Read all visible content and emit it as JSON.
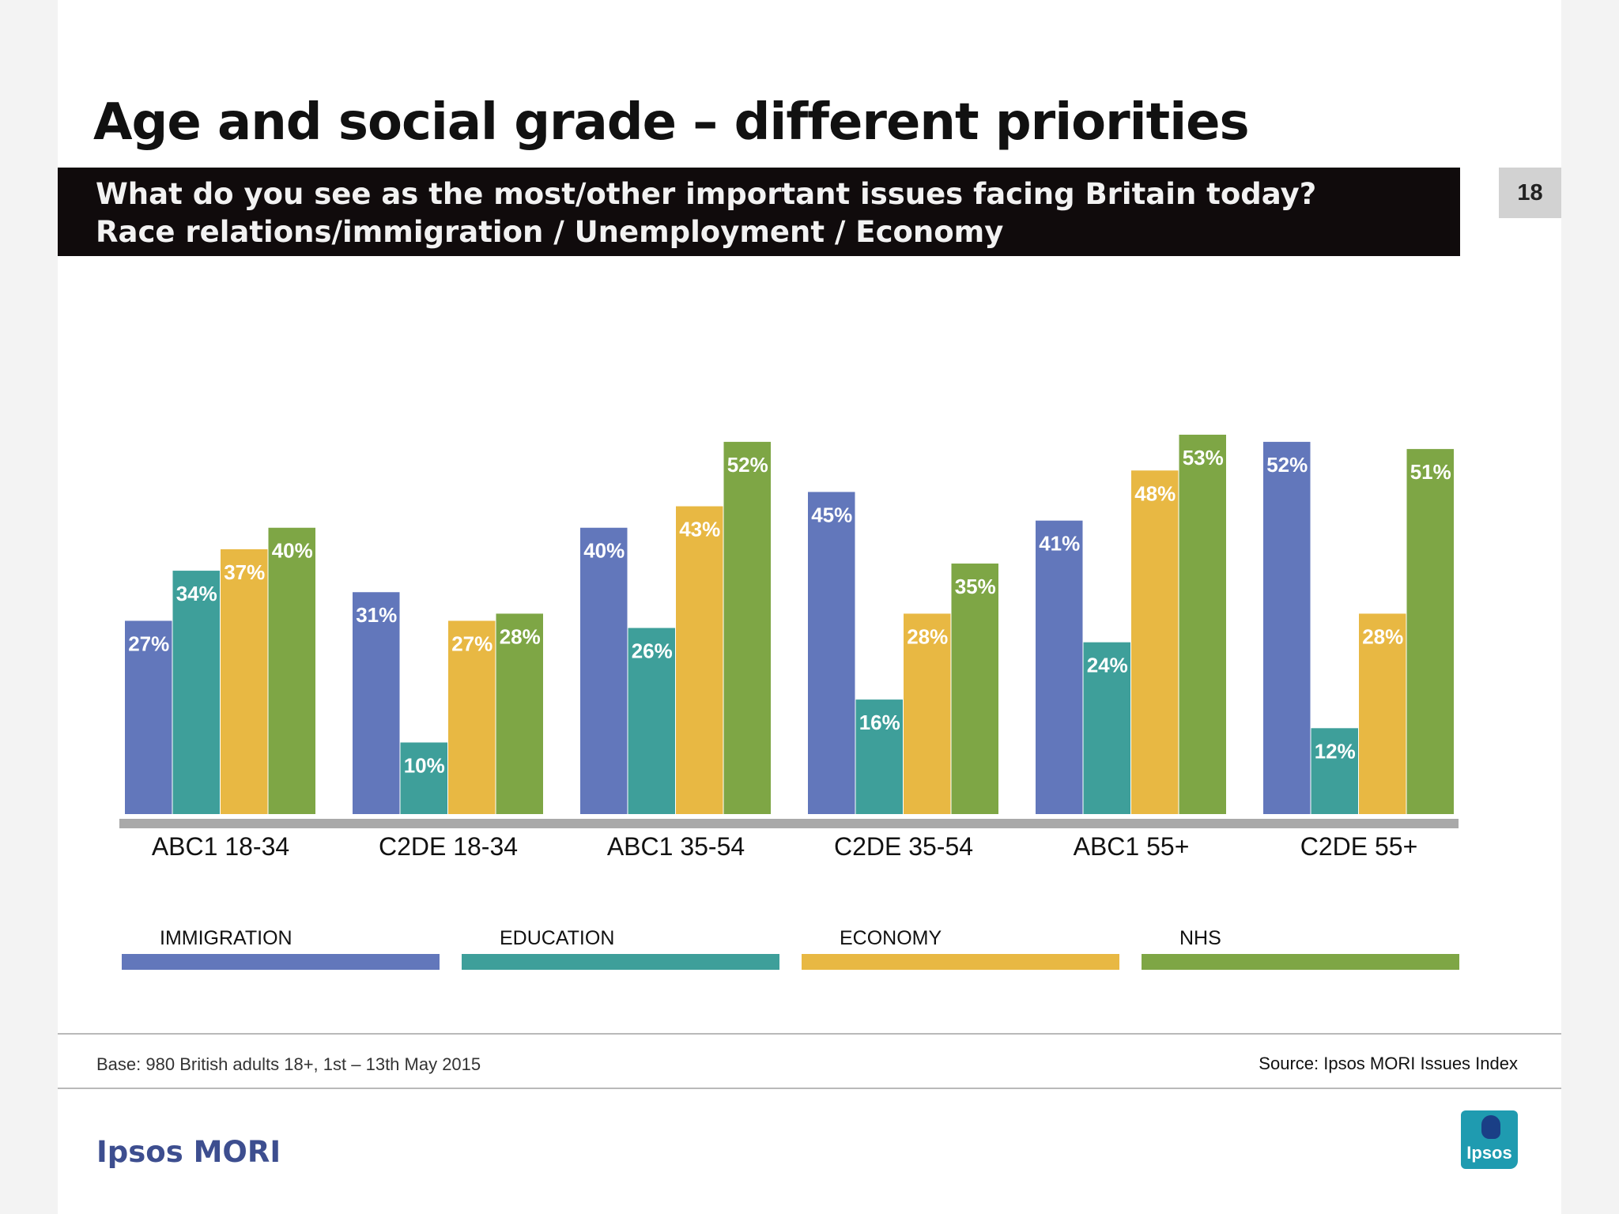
{
  "header": {
    "title": "Age and social grade – different priorities",
    "question_line1": "What do you see as the most/other important issues facing Britain today?",
    "question_line2": "Race relations/immigration / Unemployment / Economy",
    "page_number": "18"
  },
  "chart_data": {
    "type": "bar",
    "categories": [
      "ABC1 18-34",
      "C2DE 18-34",
      "ABC1 35-54",
      "C2DE 35-54",
      "ABC1 55+",
      "C2DE 55+"
    ],
    "series": [
      {
        "name": "IMMIGRATION",
        "color": "#6277bb",
        "values": [
          27,
          31,
          40,
          45,
          41,
          52
        ],
        "labels": [
          "27%",
          "31%",
          "40%",
          "45%",
          "41%",
          "52%"
        ]
      },
      {
        "name": "EDUCATION",
        "color": "#3e9f9a",
        "values": [
          34,
          10,
          26,
          16,
          24,
          12
        ],
        "labels": [
          "34%",
          "10%",
          "26%",
          "16%",
          "24%",
          "12%"
        ]
      },
      {
        "name": "ECONOMY",
        "color": "#e8b843",
        "values": [
          37,
          27,
          43,
          28,
          48,
          28
        ],
        "labels": [
          "37%",
          "27%",
          "43%",
          "28%",
          "48%",
          "28%"
        ]
      },
      {
        "name": "NHS",
        "color": "#7ea645",
        "values": [
          40,
          28,
          52,
          35,
          53,
          51
        ],
        "labels": [
          "40%",
          "28%",
          "52%",
          "35%",
          "53%",
          "51%"
        ]
      }
    ],
    "ylim": [
      0,
      53
    ],
    "legend_position": "bottom"
  },
  "footer": {
    "base": "Base: 980 British adults 18+, 1st – 13th May 2015",
    "source": "Source: Ipsos MORI Issues Index",
    "brand": "Ipsos MORI",
    "logo_text": "Ipsos"
  }
}
